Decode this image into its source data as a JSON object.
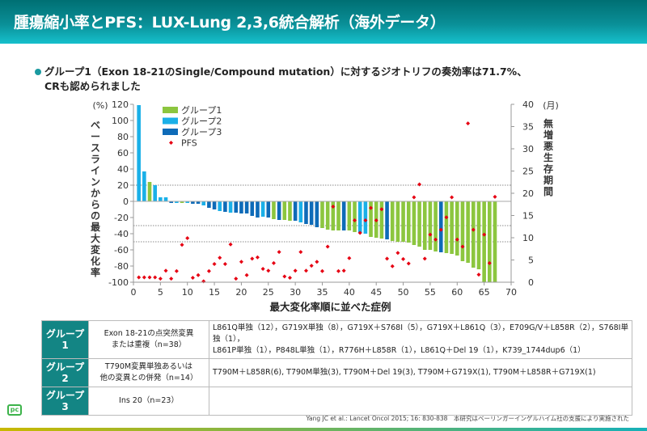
{
  "header": {
    "title": "腫瘍縮小率とPFS：LUX-Lung 2,3,6統合解析（海外データ）"
  },
  "bullet": {
    "line1": "グループ1（Exon 18-21のSingle/Compound mutation）に対するジオトリフの奏効率は71.7%、",
    "line2": "CRも認められました"
  },
  "chart_data": {
    "type": "bar",
    "xlabel": "最大変化率順に並べた症例",
    "ylabel": "ベースラインからの最大変化率",
    "yunit": "(%)",
    "y2label": "無増悪生存期間",
    "y2unit": "(月)",
    "ylim": [
      -100,
      120
    ],
    "yticks": [
      120,
      100,
      80,
      60,
      40,
      20,
      0,
      -20,
      -40,
      -60,
      -80,
      -100
    ],
    "y2lim": [
      0,
      40
    ],
    "y2ticks": [
      40,
      35,
      30,
      25,
      20,
      15,
      10,
      5,
      0
    ],
    "xlim": [
      0,
      70
    ],
    "xticks": [
      0,
      5,
      10,
      15,
      20,
      25,
      30,
      35,
      40,
      45,
      50,
      55,
      60,
      65,
      70
    ],
    "reference_lines": [
      20,
      -30,
      -50
    ],
    "legend": [
      "グループ1",
      "グループ2",
      "グループ3",
      "PFS"
    ],
    "colors": {
      "グループ1": "#8cc63f",
      "グループ2": "#1ab0e8",
      "グループ3": "#0e6bb8",
      "PFS": "#e60012"
    },
    "groups": [
      2,
      2,
      1,
      2,
      2,
      2,
      3,
      2,
      1,
      2,
      3,
      3,
      2,
      3,
      3,
      2,
      3,
      2,
      3,
      3,
      3,
      3,
      3,
      2,
      3,
      1,
      3,
      1,
      1,
      3,
      2,
      3,
      3,
      3,
      1,
      1,
      1,
      1,
      3,
      1,
      1,
      2,
      2,
      1,
      1,
      1,
      3,
      1,
      1,
      1,
      1,
      1,
      1,
      1,
      1,
      1,
      3,
      1,
      1,
      1,
      1,
      1,
      1,
      1,
      1,
      1,
      1
    ],
    "values": [
      119,
      37,
      24,
      20,
      5,
      5,
      -2,
      -2,
      -2,
      -2,
      -3,
      -3,
      -5,
      -8,
      -10,
      -12,
      -13,
      -14,
      -14,
      -15,
      -15,
      -18,
      -20,
      -19,
      -20,
      -22,
      -23,
      -23,
      -24,
      -24,
      -26,
      -28,
      -29,
      -32,
      -33,
      -35,
      -36,
      -36,
      -36,
      -36,
      -38,
      -39,
      -40,
      -44,
      -45,
      -46,
      -47,
      -49,
      -50,
      -50,
      -51,
      -54,
      -56,
      -60,
      -60,
      -62,
      -63,
      -64,
      -65,
      -67,
      -74,
      -76,
      -82,
      -84,
      -100,
      -100,
      -100
    ],
    "pfs": [
      1.1,
      1.1,
      1.1,
      1.1,
      0.8,
      2.6,
      0.8,
      2.5,
      8.4,
      9.9,
      1,
      1.6,
      0.2,
      2.5,
      4.1,
      5.5,
      4.1,
      8.5,
      0.8,
      4.6,
      1.6,
      5.3,
      5.6,
      3,
      2.6,
      4.3,
      6.8,
      1.3,
      1,
      2.6,
      6.8,
      2.6,
      3.7,
      4.6,
      2.5,
      8,
      17,
      2.5,
      2.6,
      5.4,
      13.9,
      11.1,
      13.9,
      16.7,
      13.9,
      16.4,
      5.3,
      3.6,
      6.6,
      5.2,
      4.2,
      19.1,
      22,
      5.3,
      10.7,
      9.6,
      11.8,
      14.6,
      19.1,
      9.6,
      8,
      35.7,
      11.8,
      1.7,
      10.7,
      4.3,
      19.2
    ]
  },
  "table": {
    "rows": [
      {
        "group": "グループ1",
        "desc1": "Exon 18-21の点突然変異",
        "desc2": "または重複（n=38）",
        "m1": "L861Q単独（12），G719X単独（8），G719X＋S768I（5），G719X＋L861Q（3），E709G/V＋L858R（2），S768I単独（1），",
        "m2": "L861P単独（1），P848L単独（1），R776H＋L858R（1），L861Q＋Del 19（1），K739_1744dup6（1）"
      },
      {
        "group": "グループ2",
        "desc1": "T790M変異単独あるいは",
        "desc2": "他の変異との併発（n=14）",
        "m1": "T790M＋L858R(6), T790M単独(3), T790M＋Del 19(3), T790M＋G719X(1), T790M＋L858R＋G719X(1)",
        "m2": ""
      },
      {
        "group": "グループ3",
        "desc1": "Ins 20（n=23）",
        "desc2": "",
        "m1": "",
        "m2": ""
      }
    ]
  },
  "footer": {
    "citation": "Yang JC et al.: Lancet Oncol 2015; 16: 830-838　本研究はベーリンガーインゲルハイム社の支援により実施された",
    "logo": "pc"
  }
}
